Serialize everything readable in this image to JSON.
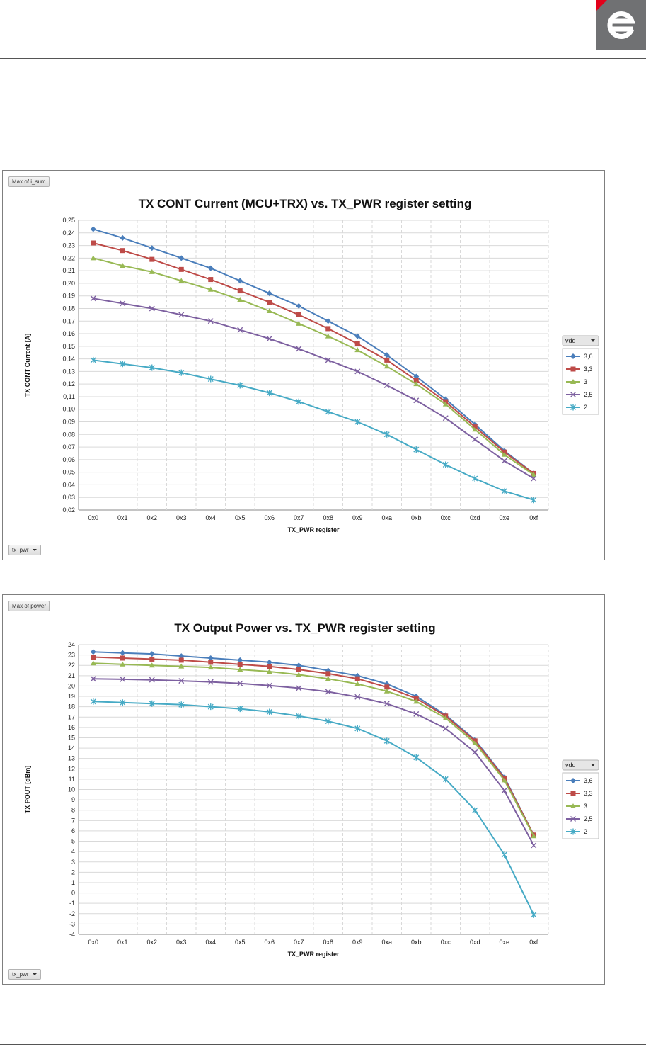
{
  "charts": [
    {
      "field_label": "Max of i_sum",
      "filter_label": "tx_pwr",
      "legend_field": "vdd",
      "chart_data": {
        "type": "line",
        "title": "TX CONT Current (MCU+TRX) vs. TX_PWR register setting",
        "xlabel": "TX_PWR register",
        "ylabel": "TX CONT Current [A]",
        "categories": [
          "0x0",
          "0x1",
          "0x2",
          "0x3",
          "0x4",
          "0x5",
          "0x6",
          "0x7",
          "0x8",
          "0x9",
          "0xa",
          "0xb",
          "0xc",
          "0xd",
          "0xe",
          "0xf"
        ],
        "ylim": [
          0.02,
          0.25
        ],
        "ystep": 0.01,
        "ydecimals": 2,
        "grid": true,
        "legend_position": "right",
        "series": [
          {
            "name": "3,6",
            "color": "#4a7ebb",
            "marker": "diamond",
            "values": [
              0.243,
              0.236,
              0.228,
              0.22,
              0.212,
              0.202,
              0.192,
              0.182,
              0.17,
              0.158,
              0.143,
              0.126,
              0.108,
              0.088,
              0.067,
              0.049
            ]
          },
          {
            "name": "3,3",
            "color": "#be4b48",
            "marker": "square",
            "values": [
              0.232,
              0.226,
              0.219,
              0.211,
              0.203,
              0.194,
              0.185,
              0.175,
              0.164,
              0.152,
              0.139,
              0.123,
              0.106,
              0.086,
              0.066,
              0.049
            ]
          },
          {
            "name": "3",
            "color": "#98b954",
            "marker": "triangle",
            "values": [
              0.22,
              0.214,
              0.209,
              0.202,
              0.195,
              0.187,
              0.178,
              0.168,
              0.158,
              0.147,
              0.134,
              0.12,
              0.104,
              0.084,
              0.064,
              0.048
            ]
          },
          {
            "name": "2,5",
            "color": "#7d60a0",
            "marker": "x",
            "values": [
              0.188,
              0.184,
              0.18,
              0.175,
              0.17,
              0.163,
              0.156,
              0.148,
              0.139,
              0.13,
              0.119,
              0.107,
              0.093,
              0.076,
              0.059,
              0.045
            ]
          },
          {
            "name": "2",
            "color": "#46aac5",
            "marker": "star",
            "values": [
              0.139,
              0.136,
              0.133,
              0.129,
              0.124,
              0.119,
              0.113,
              0.106,
              0.098,
              0.09,
              0.08,
              0.068,
              0.056,
              0.045,
              0.035,
              0.028
            ]
          }
        ]
      }
    },
    {
      "field_label": "Max of power",
      "filter_label": "tx_pwr",
      "legend_field": "vdd",
      "chart_data": {
        "type": "line",
        "title": "TX Output Power vs. TX_PWR register setting",
        "xlabel": "TX_PWR register",
        "ylabel": "TX POUT [dBm]",
        "categories": [
          "0x0",
          "0x1",
          "0x2",
          "0x3",
          "0x4",
          "0x5",
          "0x6",
          "0x7",
          "0x8",
          "0x9",
          "0xa",
          "0xb",
          "0xc",
          "0xd",
          "0xe",
          "0xf"
        ],
        "ylim": [
          -4,
          24
        ],
        "ystep": 1,
        "ydecimals": 0,
        "grid": true,
        "legend_position": "right",
        "series": [
          {
            "name": "3,6",
            "color": "#4a7ebb",
            "marker": "diamond",
            "values": [
              23.3,
              23.2,
              23.1,
              22.9,
              22.7,
              22.5,
              22.3,
              22.0,
              21.5,
              21.0,
              20.2,
              19.0,
              17.2,
              14.8,
              11.2,
              5.6
            ]
          },
          {
            "name": "3,3",
            "color": "#be4b48",
            "marker": "square",
            "values": [
              22.8,
              22.7,
              22.6,
              22.5,
              22.3,
              22.1,
              21.9,
              21.6,
              21.2,
              20.7,
              19.9,
              18.8,
              17.1,
              14.7,
              11.1,
              5.6
            ]
          },
          {
            "name": "3",
            "color": "#98b954",
            "marker": "triangle",
            "values": [
              22.2,
              22.1,
              22.0,
              21.9,
              21.8,
              21.6,
              21.4,
              21.1,
              20.7,
              20.2,
              19.5,
              18.5,
              16.9,
              14.5,
              10.9,
              5.5
            ]
          },
          {
            "name": "2,5",
            "color": "#7d60a0",
            "marker": "x",
            "values": [
              20.7,
              20.65,
              20.6,
              20.5,
              20.4,
              20.25,
              20.05,
              19.8,
              19.45,
              18.95,
              18.3,
              17.3,
              15.9,
              13.6,
              9.9,
              4.6
            ]
          },
          {
            "name": "2",
            "color": "#46aac5",
            "marker": "star",
            "values": [
              18.5,
              18.4,
              18.3,
              18.2,
              18.0,
              17.8,
              17.5,
              17.1,
              16.6,
              15.9,
              14.7,
              13.1,
              11.0,
              8.0,
              3.7,
              -2.1
            ]
          }
        ]
      }
    }
  ]
}
